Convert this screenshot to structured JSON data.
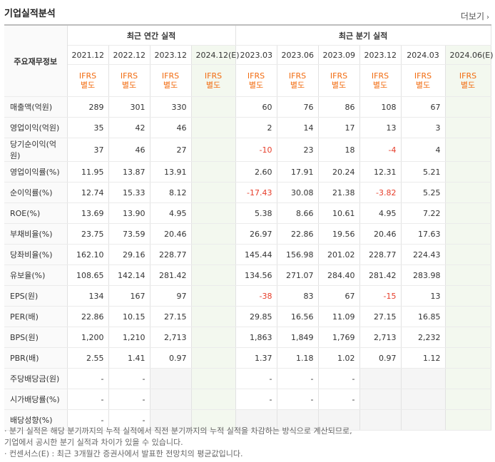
{
  "title": "기업실적분석",
  "more": "더보기",
  "row_header": "주요재무정보",
  "group_annual": "최근 연간 실적",
  "group_quarter": "최근 분기 실적",
  "periods": [
    "2021.12",
    "2022.12",
    "2023.12",
    "2024.12(E)",
    "2023.03",
    "2023.06",
    "2023.09",
    "2023.12",
    "2024.03",
    "2024.06(E)"
  ],
  "ifrs_top": "IFRS",
  "ifrs_bottom": "별도",
  "rows": [
    {
      "label": "매출액(억원)",
      "values": [
        "289",
        "301",
        "330",
        "",
        "60",
        "76",
        "86",
        "108",
        "67",
        ""
      ]
    },
    {
      "label": "영업이익(억원)",
      "values": [
        "35",
        "42",
        "46",
        "",
        "2",
        "14",
        "17",
        "13",
        "3",
        ""
      ]
    },
    {
      "label": "당기순이익(억원)",
      "values": [
        "37",
        "46",
        "27",
        "",
        "-10",
        "23",
        "18",
        "-4",
        "4",
        ""
      ]
    },
    {
      "label": "영업이익률(%)",
      "values": [
        "11.95",
        "13.87",
        "13.91",
        "",
        "2.60",
        "17.91",
        "20.24",
        "12.31",
        "5.21",
        ""
      ]
    },
    {
      "label": "순이익률(%)",
      "values": [
        "12.74",
        "15.33",
        "8.12",
        "",
        "-17.43",
        "30.08",
        "21.38",
        "-3.82",
        "5.25",
        ""
      ]
    },
    {
      "label": "ROE(%)",
      "values": [
        "13.69",
        "13.90",
        "4.95",
        "",
        "5.38",
        "8.66",
        "10.61",
        "4.95",
        "7.22",
        ""
      ]
    },
    {
      "label": "부채비율(%)",
      "values": [
        "23.75",
        "73.59",
        "20.46",
        "",
        "26.97",
        "22.86",
        "19.56",
        "20.46",
        "17.63",
        ""
      ]
    },
    {
      "label": "당좌비율(%)",
      "values": [
        "162.10",
        "29.16",
        "228.77",
        "",
        "145.44",
        "156.98",
        "201.02",
        "228.77",
        "224.43",
        ""
      ]
    },
    {
      "label": "유보율(%)",
      "values": [
        "108.65",
        "142.14",
        "281.42",
        "",
        "134.56",
        "271.07",
        "284.40",
        "281.42",
        "283.98",
        ""
      ]
    },
    {
      "label": "EPS(원)",
      "values": [
        "134",
        "167",
        "97",
        "",
        "-38",
        "83",
        "67",
        "-15",
        "13",
        ""
      ]
    },
    {
      "label": "PER(배)",
      "values": [
        "22.86",
        "10.15",
        "27.15",
        "",
        "29.85",
        "16.56",
        "11.09",
        "27.15",
        "16.85",
        ""
      ]
    },
    {
      "label": "BPS(원)",
      "values": [
        "1,200",
        "1,210",
        "2,713",
        "",
        "1,863",
        "1,849",
        "1,769",
        "2,713",
        "2,232",
        ""
      ]
    },
    {
      "label": "PBR(배)",
      "values": [
        "2.55",
        "1.41",
        "0.97",
        "",
        "1.37",
        "1.18",
        "1.02",
        "0.97",
        "1.12",
        ""
      ]
    },
    {
      "label": "주당배당금(원)",
      "values": [
        "-",
        "-",
        "",
        "",
        "-",
        "-",
        "-",
        "",
        "",
        ""
      ]
    },
    {
      "label": "시가배당률(%)",
      "values": [
        "-",
        "-",
        "",
        "",
        "-",
        "-",
        "-",
        "",
        "",
        ""
      ]
    },
    {
      "label": "배당성향(%)",
      "values": [
        "-",
        "-",
        "",
        "",
        "",
        "",
        "",
        "",
        "",
        ""
      ]
    }
  ],
  "notes": [
    "· 분기 실적은 해당 분기까지의 누적 실적에서 직전 분기까지의 누적 실적을 차감하는 방식으로 계산되므로,",
    "  기업에서 공시한 분기 실적과 차이가 있을 수 있습니다.",
    "· 컨센서스(E) : 최근 3개월간 증권사에서 발표한 전망치의 평균값입니다."
  ],
  "colors": {
    "accent": "#f26b0f",
    "negative": "#e63d2a",
    "estimate_bg": "#f3f8ef"
  }
}
